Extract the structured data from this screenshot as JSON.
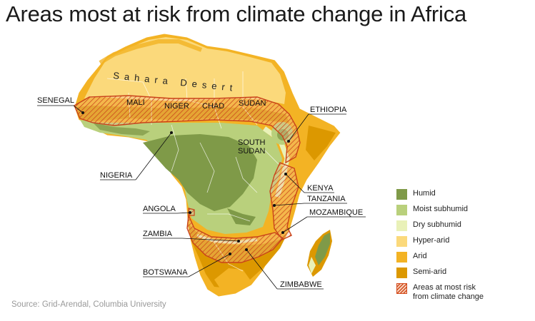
{
  "title": "Areas most at risk from climate change in Africa",
  "source": "Source: Grid-Arendal, Columbia University",
  "region_labels": {
    "sahara": "Sahara Desert",
    "mali": "MALI",
    "niger": "NIGER",
    "chad": "CHAD",
    "sudan": "SUDAN",
    "south_sudan_1": "SOUTH",
    "south_sudan_2": "SUDAN"
  },
  "callouts": {
    "senegal": "SENEGAL",
    "ethiopia": "ETHIOPIA",
    "nigeria": "NIGERIA",
    "kenya": "KENYA",
    "tanzania": "TANZANIA",
    "angola": "ANGOLA",
    "mozambique": "MOZAMBIQUE",
    "zambia": "ZAMBIA",
    "botswana": "BOTSWANA",
    "zimbabwe": "ZIMBABWE"
  },
  "legend": [
    {
      "label": "Humid",
      "color": "#7f9a48"
    },
    {
      "label": "Moist subhumid",
      "color": "#b9d07c"
    },
    {
      "label": "Dry subhumid",
      "color": "#e9f1b8"
    },
    {
      "label": "Hyper-arid",
      "color": "#fbd97b"
    },
    {
      "label": "Arid",
      "color": "#f3b324"
    },
    {
      "label": "Semi-arid",
      "color": "#dc9800"
    },
    {
      "label": "Areas at most risk\nfrom climate change",
      "pattern": "hatch",
      "color": "#d34a1c"
    }
  ]
}
